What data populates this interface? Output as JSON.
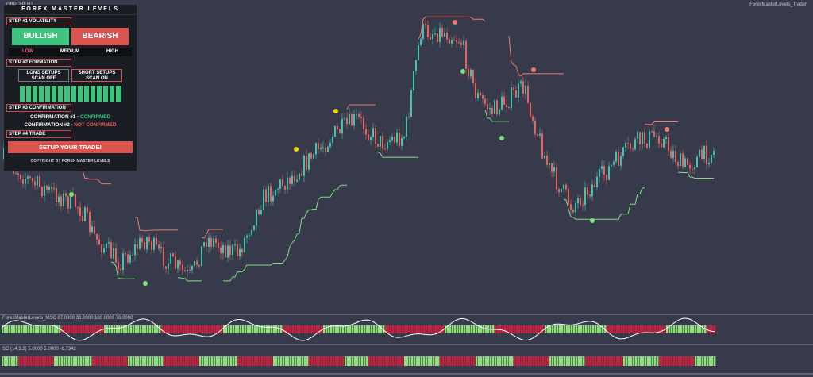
{
  "header": {
    "symbol": "GBPCHF,H1",
    "indicator": "ForexMasterLevels_Trader"
  },
  "panel": {
    "title": "FOREX MASTER LEVELS",
    "step1": "STEP #1 VOLATILITY",
    "bullish": "BULLISH",
    "bearish": "BEARISH",
    "low": "LOW",
    "medium": "MEDIUM",
    "high": "HIGH",
    "step2": "STEP #2 FORMATION",
    "long_line1": "LONG SETUPS",
    "long_line2": "SCAN OFF",
    "short_line1": "SHORT SETUPS",
    "short_line2": "SCAN ON",
    "step3": "STEP #3 CONFIRMATION",
    "conf1": "CONFIRMATION #1 -",
    "conf1_status": "CONFIRMED",
    "conf2": "CONFIRMATION #2 -",
    "conf2_status": "NOT CONFIRMED",
    "step4": "STEP #4 TRADE",
    "trade_button": "SETUP YOUR TRADE!",
    "copyright": "COPYRIGHT BY FOREX MASTER LEVELS"
  },
  "subwindows": {
    "msc_label": "ForexMasterLevels_MSC 67.0000 33.0000 100.0000 76.0000",
    "sc_label": "SC (14,3,3) 5.0000 5.0000 -6.7342"
  }
}
